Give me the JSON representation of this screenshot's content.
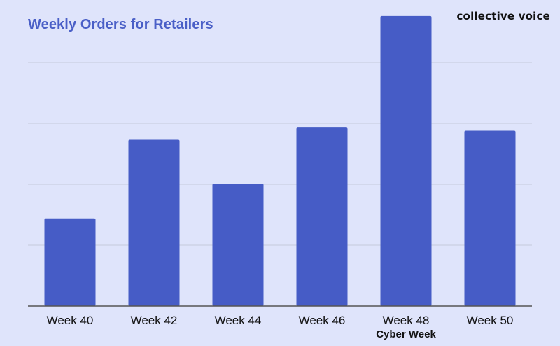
{
  "header": {
    "title": "Weekly Orders for Retailers",
    "brand": "collective voice"
  },
  "colors": {
    "background": "#dfe4fb",
    "bar": "#465cc6",
    "title": "#4a5fc7",
    "gridline": "#c6cadb",
    "axis": "#555555",
    "text": "#111111"
  },
  "chart_data": {
    "type": "bar",
    "title": "Weekly Orders for Retailers",
    "xlabel": "",
    "ylabel": "",
    "categories": [
      "Week 40",
      "Week 42",
      "Week 44",
      "Week 46",
      "Week 48",
      "Week 50"
    ],
    "annotations": [
      "",
      "",
      "",
      "",
      "Cyber Week",
      ""
    ],
    "values": [
      1.44,
      2.73,
      2.01,
      2.93,
      4.76,
      2.88
    ],
    "ylim": [
      0,
      5
    ],
    "gridlines": [
      1,
      2,
      3,
      4
    ],
    "y_tick_labels_shown": false,
    "grid": true,
    "legend": "none"
  }
}
